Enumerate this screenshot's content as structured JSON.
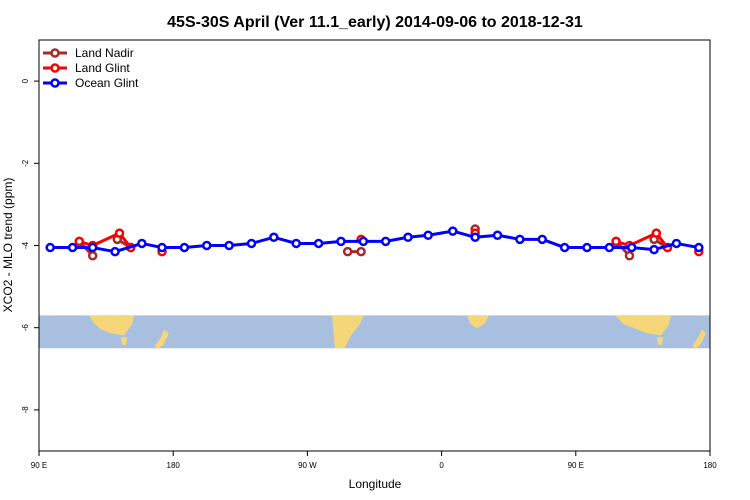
{
  "chart_data": {
    "type": "line",
    "title": "45S-30S April (Ver 11.1_early)   2014-09-06 to 2018-12-31",
    "xlabel": "Longitude",
    "ylabel": "XCO2 - MLO trend (ppm)",
    "xlim": [
      90,
      390
    ],
    "ylim": [
      -9,
      1
    ],
    "x_ticks": [
      {
        "value": 90,
        "label": "90 E"
      },
      {
        "value": 150,
        "label": "180"
      },
      {
        "value": 210,
        "label": "90 W"
      },
      {
        "value": 270,
        "label": "0"
      },
      {
        "value": 330,
        "label": "90 E"
      },
      {
        "value": 390,
        "label": "180"
      }
    ],
    "y_ticks": [
      {
        "value": 0,
        "label": "0"
      },
      {
        "value": -2,
        "label": "-2"
      },
      {
        "value": -4,
        "label": "-4"
      },
      {
        "value": -6,
        "label": "-6"
      },
      {
        "value": -8,
        "label": "-8"
      }
    ],
    "legend_position": "top-left",
    "map_strip": {
      "y_range": [
        -6.5,
        -5.7
      ],
      "ocean_color": "#a9bfdf",
      "land_color": "#f5d77a"
    },
    "series": [
      {
        "name": "Land Nadir",
        "color": "#a52a2a",
        "segments": [
          [
            [
              108,
              -3.9
            ],
            [
              114,
              -4.25
            ]
          ],
          [
            [
              125,
              -3.85
            ],
            [
              131,
              -4.05
            ]
          ],
          [
            [
              228,
              -4.15
            ],
            [
              234,
              -4.15
            ]
          ],
          [
            [
              285,
              -3.6
            ]
          ],
          [
            [
              348,
              -3.9
            ],
            [
              354,
              -4.25
            ]
          ],
          [
            [
              365,
              -3.85
            ],
            [
              371,
              -4.05
            ]
          ]
        ]
      },
      {
        "name": "Land Glint",
        "color": "#ff0000",
        "segments": [
          [
            [
              108,
              -3.9
            ],
            [
              114,
              -4.0
            ],
            [
              126,
              -3.7
            ],
            [
              131,
              -4.05
            ]
          ],
          [
            [
              145,
              -4.15
            ]
          ],
          [
            [
              234,
              -3.85
            ]
          ],
          [
            [
              285,
              -3.7
            ]
          ],
          [
            [
              348,
              -3.9
            ],
            [
              354,
              -4.0
            ],
            [
              366,
              -3.7
            ],
            [
              371,
              -4.05
            ]
          ],
          [
            [
              385,
              -4.15
            ]
          ]
        ]
      },
      {
        "name": "Ocean Glint",
        "color": "#0000ff",
        "segments": [
          [
            [
              95,
              -4.05
            ],
            [
              105,
              -4.05
            ],
            [
              114,
              -4.05
            ],
            [
              124,
              -4.15
            ],
            [
              136,
              -3.95
            ],
            [
              145,
              -4.05
            ],
            [
              155,
              -4.05
            ],
            [
              165,
              -4.0
            ],
            [
              175,
              -4.0
            ],
            [
              185,
              -3.95
            ],
            [
              195,
              -3.8
            ],
            [
              205,
              -3.95
            ],
            [
              215,
              -3.95
            ],
            [
              225,
              -3.9
            ],
            [
              235,
              -3.9
            ],
            [
              245,
              -3.9
            ],
            [
              255,
              -3.8
            ],
            [
              264,
              -3.75
            ],
            [
              275,
              -3.65
            ],
            [
              285,
              -3.8
            ],
            [
              295,
              -3.75
            ],
            [
              305,
              -3.85
            ],
            [
              315,
              -3.85
            ],
            [
              325,
              -4.05
            ],
            [
              335,
              -4.05
            ],
            [
              345,
              -4.05
            ],
            [
              355,
              -4.05
            ],
            [
              365,
              -4.1
            ],
            [
              375,
              -3.95
            ],
            [
              385,
              -4.05
            ]
          ]
        ]
      }
    ]
  }
}
